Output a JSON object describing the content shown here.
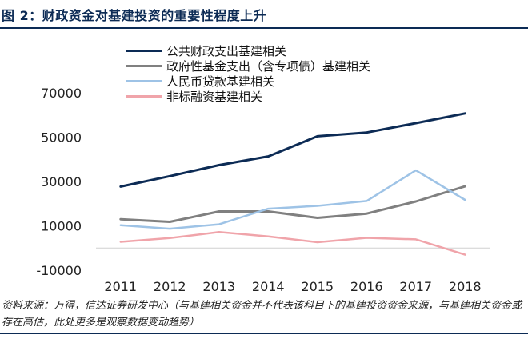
{
  "figure_title": "图 2：财政资金对基建投资的重要性程度上升",
  "source_note": "资料来源：万得，信达证券研发中心（与基建相关资金并不代表该科目下的基建投资资金来源，与基建相关资金或存在高估，此处更多是观察数据变动趋势）",
  "colors": {
    "title": "#0c2b55",
    "series": [
      "#0c2b55",
      "#808080",
      "#9ec3e6",
      "#f0a4aa"
    ]
  },
  "chart_data": {
    "type": "line",
    "title": "",
    "xlabel": "",
    "ylabel": "",
    "categories": [
      "2011",
      "2012",
      "2013",
      "2014",
      "2015",
      "2016",
      "2017",
      "2018"
    ],
    "ylim": [
      -10000,
      70000
    ],
    "yticks": [
      "-10000",
      "10000",
      "30000",
      "50000",
      "70000"
    ],
    "legend_position": "top-left",
    "grid": false,
    "series": [
      {
        "name": "公共财政支出基建相关",
        "values": [
          27700,
          32400,
          37400,
          41300,
          50400,
          52100,
          56300,
          60700
        ]
      },
      {
        "name": "政府性基金支出（含专项债）基建相关",
        "values": [
          13000,
          11800,
          16500,
          16500,
          13600,
          15500,
          21000,
          27800
        ]
      },
      {
        "name": "人民币贷款基建相关",
        "values": [
          10300,
          8700,
          10700,
          17700,
          19000,
          21200,
          35000,
          21700
        ]
      },
      {
        "name": "非标融资基建相关",
        "values": [
          2800,
          4500,
          7200,
          5200,
          2600,
          4600,
          3900,
          -3000
        ]
      }
    ]
  }
}
